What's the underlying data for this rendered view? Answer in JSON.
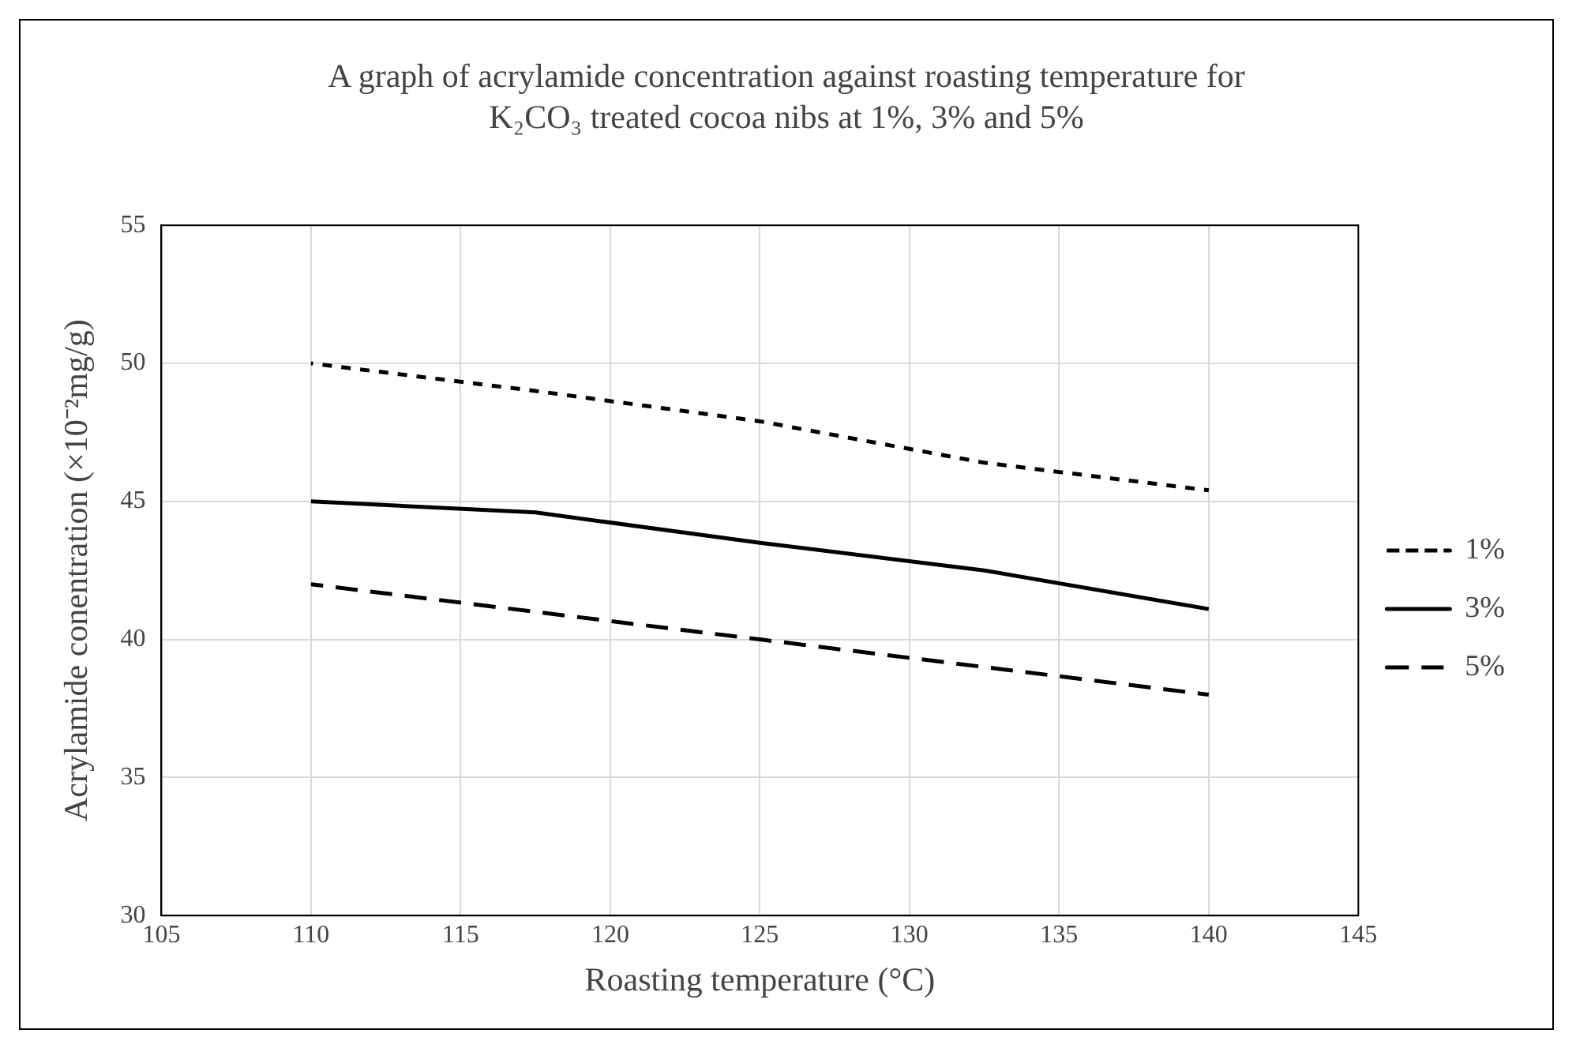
{
  "chart_data": {
    "type": "line",
    "title": "A graph of acrylamide concentration against roasting temperature for",
    "subtitle": "K₂CO₃ treated cocoa nibs at 1%, 3% and 5%",
    "xlabel": "Roasting temperature (°C)",
    "ylabel": "Acrylamide conentration (×10⁻²mg/g)",
    "x": [
      110,
      117.5,
      125,
      132.5,
      140
    ],
    "series": [
      {
        "name": "1%",
        "color": "#000000",
        "line_style": "dotted",
        "values": [
          50,
          49,
          47.9,
          46.4,
          45.4
        ]
      },
      {
        "name": "3%",
        "color": "#000000",
        "line_style": "solid",
        "values": [
          45,
          44.6,
          43.5,
          42.5,
          41.1
        ]
      },
      {
        "name": "5%",
        "color": "#000000",
        "line_style": "dashed",
        "values": [
          42,
          41,
          40,
          39,
          38
        ]
      }
    ],
    "xlim": [
      105,
      145
    ],
    "xticks": [
      105,
      110,
      115,
      120,
      125,
      130,
      135,
      140,
      145
    ],
    "ylim": [
      30,
      55
    ],
    "yticks": [
      30,
      35,
      40,
      45,
      50,
      55
    ],
    "grid": true,
    "legend": "right",
    "marker": "none"
  }
}
